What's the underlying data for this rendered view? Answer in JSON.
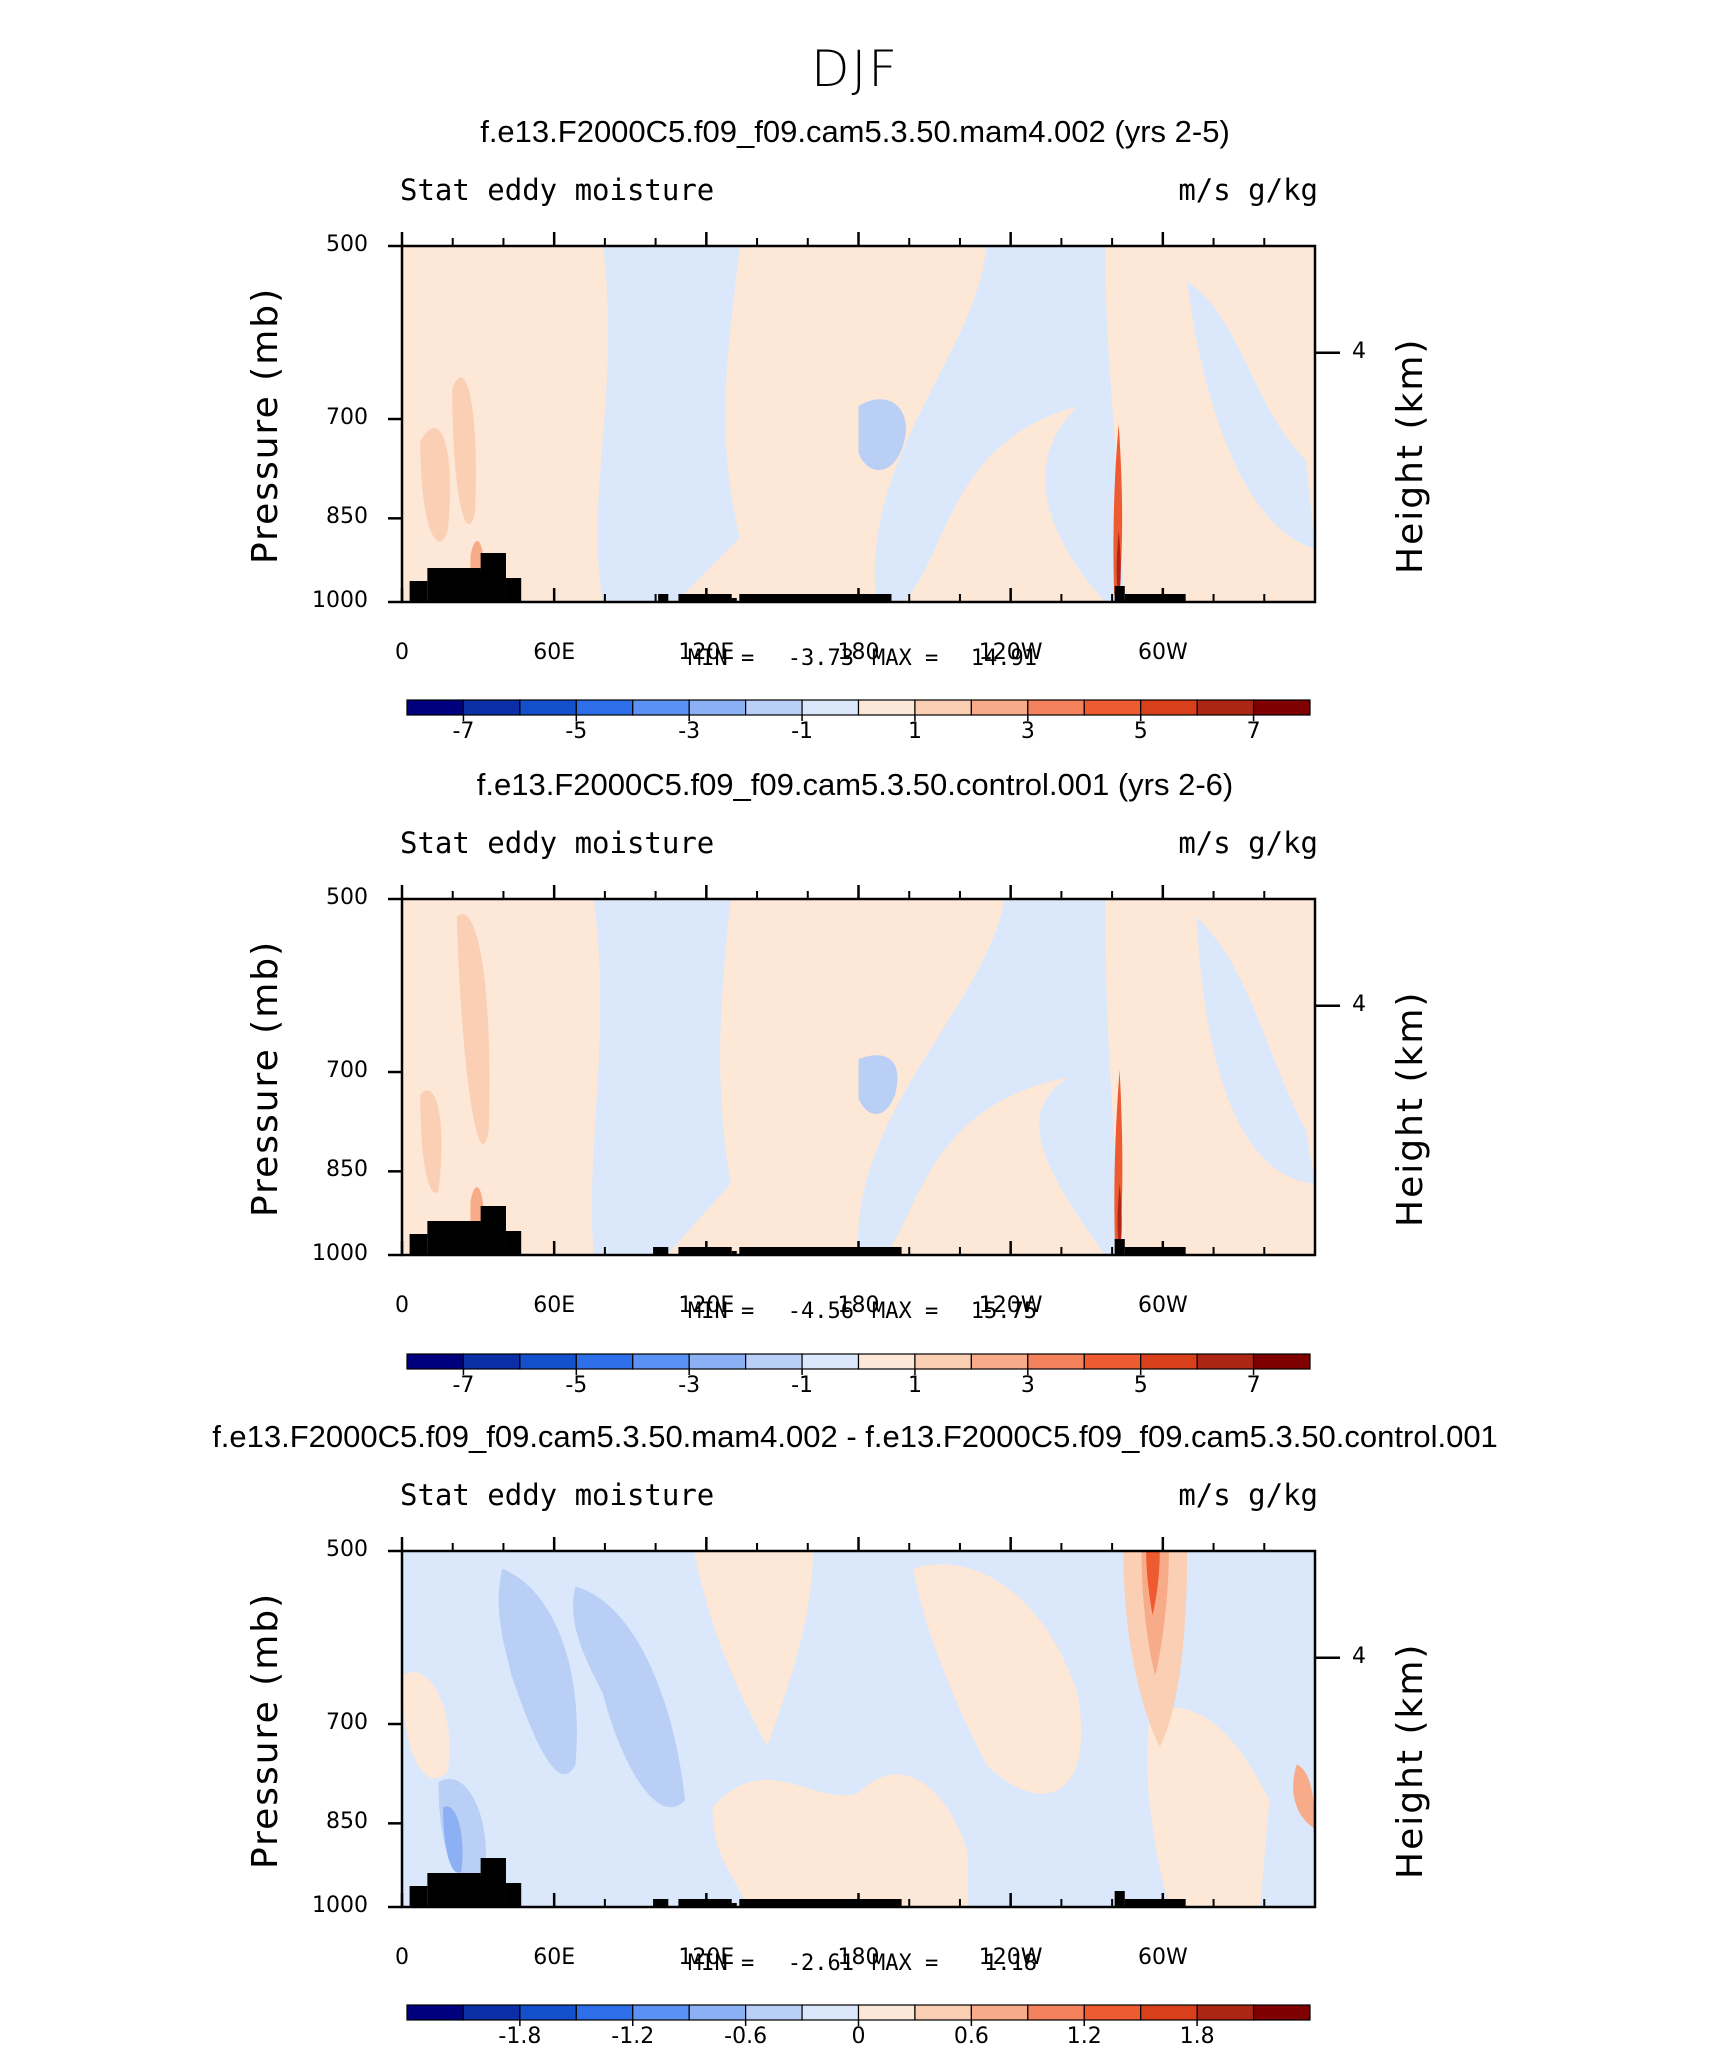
{
  "figure": {
    "title": "DJF"
  },
  "chart_data": [
    {
      "type": "heatmap",
      "title": "f.e13.F2000C5.f09_f09.cam5.3.50.mam4.002 (yrs 2-5)",
      "left_label": "Stat eddy moisture",
      "right_label": "m/s g/kg",
      "ylabel": "Pressure (mb)",
      "ylabel_right": "Height (km)",
      "yticks": [
        "500",
        "700",
        "850",
        "1000"
      ],
      "ytick_values": [
        500,
        700,
        850,
        1000
      ],
      "yticks_right": [
        "4"
      ],
      "xticks": [
        "0",
        "60E",
        "120E",
        "180",
        "120W",
        "60W"
      ],
      "xtick_values": [
        0,
        60,
        120,
        180,
        240,
        300
      ],
      "xlim": [
        0,
        360
      ],
      "ylim": [
        1000,
        500
      ],
      "min_label": "MIN =",
      "min_value": "-3.73",
      "max_label": "MAX =",
      "max_value": "14.91",
      "colorbar": {
        "levels": [
          -8,
          -7,
          -6,
          -5,
          -4,
          -3,
          -2,
          -1,
          0,
          1,
          2,
          3,
          4,
          5,
          6,
          7,
          8
        ],
        "tick_labels": [
          "-7",
          "-5",
          "-3",
          "-1",
          "1",
          "3",
          "5",
          "7"
        ],
        "tick_values": [
          -7,
          -5,
          -3,
          -1,
          1,
          3,
          5,
          7
        ]
      }
    },
    {
      "type": "heatmap",
      "title": "f.e13.F2000C5.f09_f09.cam5.3.50.control.001 (yrs 2-6)",
      "left_label": "Stat eddy moisture",
      "right_label": "m/s g/kg",
      "ylabel": "Pressure (mb)",
      "ylabel_right": "Height (km)",
      "yticks": [
        "500",
        "700",
        "850",
        "1000"
      ],
      "ytick_values": [
        500,
        700,
        850,
        1000
      ],
      "yticks_right": [
        "4"
      ],
      "xticks": [
        "0",
        "60E",
        "120E",
        "180",
        "120W",
        "60W"
      ],
      "xtick_values": [
        0,
        60,
        120,
        180,
        240,
        300
      ],
      "xlim": [
        0,
        360
      ],
      "ylim": [
        1000,
        500
      ],
      "min_label": "MIN =",
      "min_value": "-4.56",
      "max_label": "MAX =",
      "max_value": "15.75",
      "colorbar": {
        "levels": [
          -8,
          -7,
          -6,
          -5,
          -4,
          -3,
          -2,
          -1,
          0,
          1,
          2,
          3,
          4,
          5,
          6,
          7,
          8
        ],
        "tick_labels": [
          "-7",
          "-5",
          "-3",
          "-1",
          "1",
          "3",
          "5",
          "7"
        ],
        "tick_values": [
          -7,
          -5,
          -3,
          -1,
          1,
          3,
          5,
          7
        ]
      }
    },
    {
      "type": "heatmap",
      "title": "f.e13.F2000C5.f09_f09.cam5.3.50.mam4.002 - f.e13.F2000C5.f09_f09.cam5.3.50.control.001",
      "left_label": "Stat eddy moisture",
      "right_label": "m/s g/kg",
      "ylabel": "Pressure (mb)",
      "ylabel_right": "Height (km)",
      "yticks": [
        "500",
        "700",
        "850",
        "1000"
      ],
      "ytick_values": [
        500,
        700,
        850,
        1000
      ],
      "yticks_right": [
        "4"
      ],
      "xticks": [
        "0",
        "60E",
        "120E",
        "180",
        "120W",
        "60W"
      ],
      "xtick_values": [
        0,
        60,
        120,
        180,
        240,
        300
      ],
      "xlim": [
        0,
        360
      ],
      "ylim": [
        1000,
        500
      ],
      "min_label": "MIN =",
      "min_value": "-2.61",
      "max_label": "MAX =",
      "max_value": "1.18",
      "colorbar": {
        "levels": [
          -2.4,
          -2.1,
          -1.8,
          -1.5,
          -1.2,
          -0.9,
          -0.6,
          -0.3,
          0,
          0.3,
          0.6,
          0.9,
          1.2,
          1.5,
          1.8,
          2.1,
          2.4
        ],
        "tick_labels": [
          "-1.8",
          "-1.2",
          "-0.6",
          "0",
          "0.6",
          "1.2",
          "1.8"
        ],
        "tick_values": [
          -1.8,
          -1.2,
          -0.6,
          0,
          0.6,
          1.2,
          1.8
        ]
      }
    }
  ],
  "palette": [
    "#00007f",
    "#0a2fa6",
    "#1550cc",
    "#2d6fe9",
    "#5b91f2",
    "#8bb0f3",
    "#b9cff6",
    "#dbe8fb",
    "#fde7d6",
    "#fbcfb4",
    "#f8ab89",
    "#f4825d",
    "#ef5b30",
    "#d8401b",
    "#ad2513",
    "#7f0000"
  ],
  "colors": {
    "topography": "#000000",
    "frame": "#000000"
  }
}
